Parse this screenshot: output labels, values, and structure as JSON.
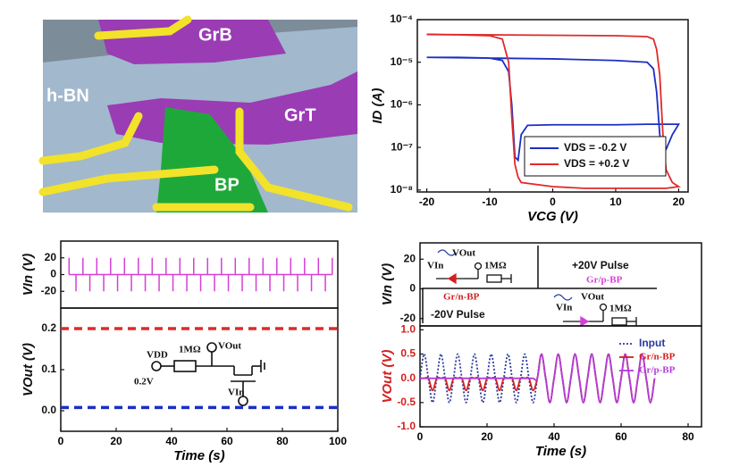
{
  "image": {
    "labels": [
      "GrB",
      "h-BN",
      "GrT",
      "BP"
    ]
  },
  "chart_data": [
    {
      "type": "line",
      "log_y": true,
      "xlabel": "VCG (V)",
      "ylabel": "ID (A)",
      "xlim": [
        -21.5,
        21.5
      ],
      "xticks": [
        -20,
        -10,
        0,
        10,
        20
      ],
      "ylim": [
        9e-09,
        0.0001
      ],
      "yticks": [
        {
          "value": 1e-08,
          "label": "10⁻⁸"
        },
        {
          "value": 1e-07,
          "label": "10⁻⁷"
        },
        {
          "value": 1e-06,
          "label": "10⁻⁶"
        },
        {
          "value": 1e-05,
          "label": "10⁻⁵"
        },
        {
          "value": 0.0001,
          "label": "10⁻⁴"
        }
      ],
      "legend": "lower right",
      "series": [
        {
          "name": "VDS = -0.2 V",
          "color": "#1b2fc4",
          "x": [
            -20,
            -15,
            -10,
            -8,
            -7,
            -6.5,
            -6,
            -5.5,
            -5,
            -4,
            0,
            5,
            10,
            15,
            17,
            18,
            19,
            20,
            19,
            18,
            17.5,
            17,
            16.5,
            16,
            15,
            10,
            0,
            -10,
            -20
          ],
          "values": [
            1.3e-05,
            1.3e-05,
            1.25e-05,
            1.1e-05,
            6e-06,
            1e-06,
            6e-08,
            5e-08,
            2e-07,
            3.3e-07,
            3.4e-07,
            3.4e-07,
            3.4e-07,
            3.5e-07,
            3.5e-07,
            3.5e-07,
            3.5e-07,
            3.5e-07,
            2e-07,
            9e-08,
            8e-08,
            2e-07,
            2e-06,
            7e-06,
            1e-05,
            1.1e-05,
            1.2e-05,
            1.25e-05,
            1.3e-05
          ]
        },
        {
          "name": "VDS = +0.2 V",
          "color": "#e02a2a",
          "x": [
            -20,
            -15,
            -10,
            -8,
            -7,
            -6.5,
            -6,
            -5.5,
            -5,
            0,
            5,
            10,
            15,
            18,
            20,
            19,
            18,
            17.5,
            17,
            16.5,
            16,
            15,
            10,
            0,
            -10,
            -20
          ],
          "values": [
            4.5e-05,
            4.4e-05,
            4.2e-05,
            3.5e-05,
            1e-05,
            5e-07,
            4e-08,
            2e-08,
            1.5e-08,
            1.2e-08,
            1.1e-08,
            1.1e-08,
            1.1e-08,
            1.1e-08,
            1.2e-08,
            1.5e-08,
            3e-08,
            2e-07,
            5e-06,
            2e-05,
            3.5e-05,
            4e-05,
            4.2e-05,
            4.3e-05,
            4.4e-05,
            4.5e-05
          ]
        }
      ]
    },
    {
      "type": "stem",
      "ylabel": "VIn (V)",
      "color": "#d63fd6",
      "xlim": [
        0,
        100
      ],
      "ylim": [
        -40,
        40
      ],
      "yticks": [
        -20,
        0,
        20
      ],
      "x": [
        3,
        5.5,
        8,
        10.5,
        13,
        15.5,
        18,
        20.5,
        23,
        25.5,
        28,
        30.5,
        33,
        35.5,
        38,
        40.5,
        43,
        45.5,
        48,
        50.5,
        53,
        55.5,
        58,
        60.5,
        63,
        65.5,
        68,
        70.5,
        73,
        75.5,
        78,
        80.5,
        83,
        85.5,
        88,
        90.5,
        93,
        95.5,
        98
      ],
      "values": [
        20,
        -20,
        20,
        -20,
        20,
        -20,
        20,
        -20,
        20,
        -20,
        20,
        -20,
        20,
        -20,
        20,
        -20,
        20,
        -20,
        20,
        -20,
        20,
        -20,
        20,
        -20,
        20,
        -20,
        20,
        -20,
        20,
        -20,
        20,
        -20,
        20,
        -20,
        20,
        -20,
        20,
        -20,
        20
      ]
    },
    {
      "type": "line",
      "xlabel": "Time (s)",
      "ylabel": "VOut (V)",
      "xlim": [
        0,
        100
      ],
      "xticks": [
        0,
        20,
        40,
        60,
        80,
        100
      ],
      "ylim": [
        -0.05,
        0.25
      ],
      "yticks": [
        {
          "value": 0,
          "label": "0.0"
        },
        {
          "value": 0.1,
          "label": "0.1"
        },
        {
          "value": 0.2,
          "label": "0.2"
        }
      ],
      "series": [
        {
          "color": "#e02a2a",
          "line_style": "dashed",
          "x": [
            0,
            100
          ],
          "values": [
            0.2,
            0.2
          ]
        },
        {
          "color": "#1b2fc4",
          "line_style": "dashed",
          "x": [
            0,
            100
          ],
          "values": [
            0.008,
            0.008
          ]
        }
      ],
      "annotations": [
        "VDD",
        "1MΩ",
        "VOut",
        "0.2V",
        "VIn"
      ]
    },
    {
      "type": "line",
      "ylabel": "VIn (V)",
      "xlim": [
        0,
        84
      ],
      "ylim": [
        -25,
        31
      ],
      "yticks": [
        -20,
        0,
        20
      ],
      "annotations": [
        "VOut",
        "VIn",
        "1MΩ",
        "Gr/n-BP",
        "-20V Pulse",
        "+20V Pulse",
        "Gr/p-BP",
        "VOut",
        "VIn",
        "1MΩ"
      ]
    },
    {
      "type": "line",
      "smooth": true,
      "xlabel": "Time (s)",
      "ylabel": "VOut (V)",
      "axis_color": "#d42020",
      "xlim": [
        0,
        84
      ],
      "xticks": [
        0,
        20,
        40,
        60,
        80
      ],
      "ylim": [
        -1,
        1.08
      ],
      "yticks": [
        {
          "value": -1,
          "label": "-1.0"
        },
        {
          "value": -0.5,
          "label": "-0.5"
        },
        {
          "value": 0,
          "label": "0.0"
        },
        {
          "value": 0.5,
          "label": "0.5"
        },
        {
          "value": 1,
          "label": "1.0"
        }
      ],
      "legend": "upper right",
      "x": [
        0,
        1.25,
        2.5,
        3.75,
        5,
        6.25,
        7.5,
        8.75,
        10,
        11.25,
        12.5,
        13.75,
        15,
        16.25,
        17.5,
        18.75,
        20,
        21.25,
        22.5,
        23.75,
        25,
        26.25,
        27.5,
        28.75,
        30,
        31.25,
        32.5,
        33.75,
        35,
        36.25,
        37.5,
        38.75,
        40,
        41.25,
        42.5,
        43.75,
        45,
        46.25,
        47.5,
        48.75,
        50,
        51.25,
        52.5,
        53.75,
        55,
        56.25,
        57.5,
        58.75,
        60,
        61.25,
        62.5,
        63.75,
        65,
        66.25,
        67.5,
        68.75,
        70
      ],
      "series": [
        {
          "name": "Input",
          "color": "#2a3a9a",
          "line_style": "dotted",
          "values": [
            0,
            0.5,
            0,
            -0.5,
            0,
            0.5,
            0,
            -0.5,
            0,
            0.5,
            0,
            -0.5,
            0,
            0.5,
            0,
            -0.5,
            0,
            0.5,
            0,
            -0.5,
            0,
            0.5,
            0,
            -0.5,
            0,
            0.5,
            0,
            -0.5,
            0,
            0.5,
            0,
            -0.5,
            0,
            0.5,
            0,
            -0.5,
            0,
            0.5,
            0,
            -0.5,
            0,
            0.5,
            0,
            -0.5,
            0,
            0.5,
            0,
            -0.5,
            0,
            0.5,
            0,
            -0.5,
            0,
            0.5,
            0,
            -0.5,
            0
          ]
        },
        {
          "name": "Gr/n-BP",
          "color": "#d42020",
          "values": [
            0,
            0,
            0,
            -0.25,
            0,
            0,
            0,
            -0.25,
            0,
            0,
            0,
            -0.25,
            0,
            0,
            0,
            -0.25,
            0,
            0,
            0,
            -0.25,
            0,
            0,
            0,
            -0.25,
            0,
            0,
            0,
            -0.25,
            0,
            0.5,
            0,
            -0.5,
            0,
            0.5,
            0,
            -0.5,
            0,
            0.5,
            0,
            -0.5,
            0,
            0.5,
            0,
            -0.5,
            0,
            0.5,
            0,
            -0.5,
            0,
            0.5,
            0,
            -0.5,
            0,
            0.5,
            0,
            -0.5,
            0
          ]
        },
        {
          "name": "Gr/p-BP",
          "color": "#b43cd8",
          "values": [
            0,
            0,
            0,
            0,
            0,
            0,
            0,
            0,
            0,
            0,
            0,
            0,
            0,
            0,
            0,
            0,
            0,
            0,
            0,
            0,
            0,
            0,
            0,
            0,
            0,
            0,
            0,
            0,
            0,
            0.5,
            0,
            -0.5,
            0,
            0.5,
            0,
            -0.5,
            0,
            0.5,
            0,
            -0.5,
            0,
            0.5,
            0,
            -0.5,
            0,
            0.5,
            0,
            -0.5,
            0,
            0.5,
            0,
            -0.5,
            0,
            0.5,
            0,
            -0.5,
            0
          ]
        }
      ]
    }
  ]
}
